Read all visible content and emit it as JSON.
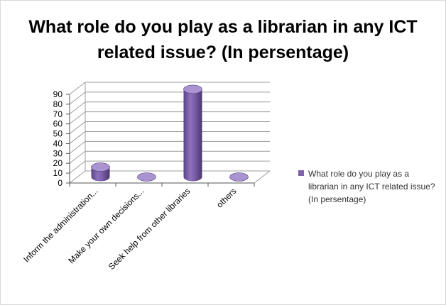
{
  "chart_data": {
    "type": "bar",
    "title_lines": [
      "What role do you play as a librarian in any ICT",
      "related issue? (In persentage)"
    ],
    "categories": [
      "Inform the administration...",
      "Make your own decisions...",
      "Seek help from other libraries",
      "others"
    ],
    "series": [
      {
        "name": "What role do you play as a librarian in any ICT related issue? (In persentage)",
        "values": [
          10,
          0,
          89,
          0
        ]
      }
    ],
    "ylim": [
      0,
      90
    ],
    "yticks": [
      0,
      10,
      20,
      30,
      40,
      50,
      60,
      70,
      80,
      90
    ],
    "grid": true,
    "legend_position": "right",
    "style": "3d-cylinder",
    "colors": {
      "bar_side": "#7f63ad",
      "bar_top": "#a993d0",
      "bar_dark": "#4f3a78",
      "grid": "#9c9c9c",
      "legend_swatch": "#7f63ad"
    }
  }
}
